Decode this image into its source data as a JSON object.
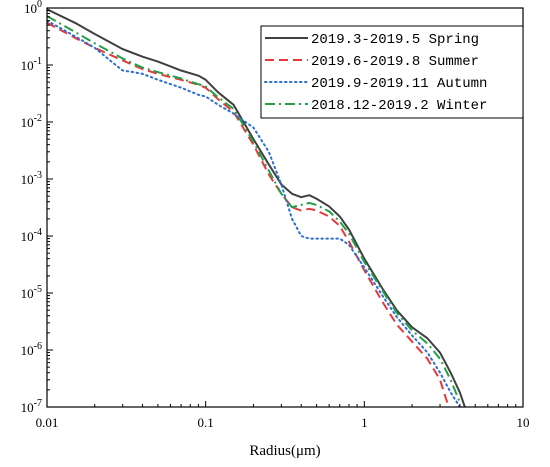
{
  "chart_data": {
    "type": "line",
    "title": "",
    "xlabel": "Radius(μm)",
    "ylabel": "",
    "x_scale": "log",
    "y_scale": "log",
    "xlim": [
      0.01,
      10
    ],
    "ylim": [
      1e-07,
      1
    ],
    "grid": false,
    "legend_position": "top-right",
    "x_ticks": [
      {
        "value": 0.01,
        "label": "0.01"
      },
      {
        "value": 0.1,
        "label": "0.1"
      },
      {
        "value": 1,
        "label": "1"
      },
      {
        "value": 10,
        "label": "10"
      }
    ],
    "y_ticks": [
      {
        "value": 1,
        "base": "10",
        "exp": "0"
      },
      {
        "value": 0.1,
        "base": "10",
        "exp": "-1"
      },
      {
        "value": 0.01,
        "base": "10",
        "exp": "-2"
      },
      {
        "value": 0.001,
        "base": "10",
        "exp": "-3"
      },
      {
        "value": 0.0001,
        "base": "10",
        "exp": "-4"
      },
      {
        "value": 1e-05,
        "base": "10",
        "exp": "-5"
      },
      {
        "value": 1e-06,
        "base": "10",
        "exp": "-6"
      },
      {
        "value": 1e-07,
        "base": "10",
        "exp": "-7"
      }
    ],
    "series": [
      {
        "name": "2019.3-2019.5  Spring",
        "color": "#404040",
        "dash": "solid",
        "x": [
          0.01,
          0.015,
          0.02,
          0.03,
          0.04,
          0.05,
          0.07,
          0.09,
          0.1,
          0.12,
          0.15,
          0.2,
          0.25,
          0.3,
          0.35,
          0.4,
          0.45,
          0.5,
          0.6,
          0.7,
          0.8,
          1.0,
          1.3,
          1.6,
          2.0,
          2.5,
          3.0,
          3.5,
          4.0,
          4.3
        ],
        "y": [
          0.95,
          0.55,
          0.35,
          0.19,
          0.14,
          0.115,
          0.08,
          0.065,
          0.055,
          0.033,
          0.02,
          0.005,
          0.0018,
          0.0008,
          0.00055,
          0.00048,
          0.00052,
          0.00045,
          0.00033,
          0.00022,
          0.00013,
          4e-05,
          1.2e-05,
          5e-06,
          2.5e-06,
          1.6e-06,
          9e-07,
          4e-07,
          1.8e-07,
          1e-07
        ]
      },
      {
        "name": "2019.6-2019.8  Summer",
        "color": "#e8383a",
        "dash": "dashed",
        "x": [
          0.01,
          0.015,
          0.02,
          0.03,
          0.04,
          0.05,
          0.07,
          0.09,
          0.1,
          0.12,
          0.15,
          0.2,
          0.25,
          0.3,
          0.35,
          0.4,
          0.45,
          0.5,
          0.6,
          0.7,
          0.8,
          1.0,
          1.3,
          1.6,
          2.0,
          2.5,
          3.0,
          3.4
        ],
        "y": [
          0.55,
          0.3,
          0.2,
          0.12,
          0.085,
          0.07,
          0.055,
          0.045,
          0.04,
          0.025,
          0.015,
          0.004,
          0.0012,
          0.00055,
          0.00032,
          0.00028,
          0.0003,
          0.00028,
          0.00022,
          0.00015,
          8e-05,
          2.5e-05,
          7e-06,
          2.8e-06,
          1.4e-06,
          7e-07,
          3e-07,
          1e-07
        ]
      },
      {
        "name": "2019.9-2019.11 Autumn",
        "color": "#2b6fd6",
        "dash": "dotted",
        "x": [
          0.01,
          0.015,
          0.02,
          0.025,
          0.03,
          0.035,
          0.04,
          0.05,
          0.07,
          0.09,
          0.1,
          0.12,
          0.15,
          0.2,
          0.25,
          0.3,
          0.35,
          0.4,
          0.45,
          0.5,
          0.6,
          0.7,
          0.8,
          1.0,
          1.3,
          1.6,
          2.0,
          2.5,
          3.0,
          3.5,
          4.0
        ],
        "y": [
          0.6,
          0.32,
          0.2,
          0.12,
          0.08,
          0.075,
          0.07,
          0.055,
          0.04,
          0.03,
          0.028,
          0.02,
          0.014,
          0.008,
          0.003,
          0.0008,
          0.0002,
          0.0001,
          9e-05,
          9e-05,
          9e-05,
          9e-05,
          7e-05,
          2.8e-05,
          9e-06,
          3.8e-06,
          1.8e-06,
          9e-07,
          4e-07,
          1.8e-07,
          1e-07
        ]
      },
      {
        "name": "2018.12-2019.2 Winter",
        "color": "#23a048",
        "dash": "dashdot",
        "x": [
          0.01,
          0.015,
          0.02,
          0.03,
          0.04,
          0.05,
          0.07,
          0.09,
          0.1,
          0.12,
          0.15,
          0.2,
          0.25,
          0.3,
          0.35,
          0.4,
          0.45,
          0.5,
          0.6,
          0.7,
          0.8,
          1.0,
          1.3,
          1.6,
          2.0,
          2.5,
          3.0,
          3.5,
          4.0
        ],
        "y": [
          0.72,
          0.38,
          0.24,
          0.13,
          0.09,
          0.075,
          0.058,
          0.046,
          0.042,
          0.027,
          0.017,
          0.0045,
          0.0014,
          0.00055,
          0.00032,
          0.00035,
          0.00038,
          0.00035,
          0.00027,
          0.00018,
          0.00011,
          3.5e-05,
          1.1e-05,
          4.5e-06,
          2.2e-06,
          1.3e-06,
          7e-07,
          3e-07,
          1.2e-07
        ]
      }
    ]
  }
}
